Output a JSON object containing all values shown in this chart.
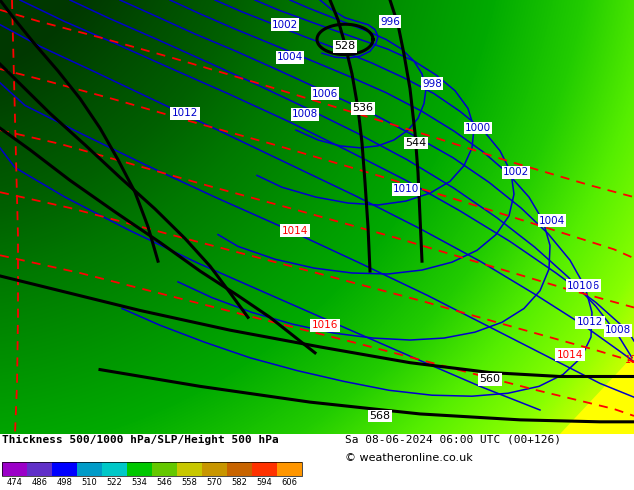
{
  "title_left": "Thickness 500/1000 hPa/SLP/Height 500 hPa",
  "title_right": "Sa 08-06-2024 06:00 UTC (00+126)",
  "copyright": "© weatheronline.co.uk",
  "colorbar_values": [
    474,
    486,
    498,
    510,
    522,
    534,
    546,
    558,
    570,
    582,
    594,
    606
  ],
  "colorbar_colors": [
    "#9b00c8",
    "#6030c8",
    "#0000ff",
    "#009bc8",
    "#00c8c8",
    "#00c800",
    "#64c800",
    "#c8c800",
    "#c89600",
    "#c86400",
    "#ff3200",
    "#ff9600"
  ],
  "fig_width": 6.34,
  "fig_height": 4.9,
  "background_regions": [
    {
      "color": "#004400",
      "band": [
        0,
        0.08
      ]
    },
    {
      "color": "#005500",
      "band": [
        0.08,
        0.18
      ]
    },
    {
      "color": "#006600",
      "band": [
        0.18,
        0.3
      ]
    },
    {
      "color": "#008800",
      "band": [
        0.3,
        0.45
      ]
    },
    {
      "color": "#009900",
      "band": [
        0.45,
        0.6
      ]
    },
    {
      "color": "#22bb00",
      "band": [
        0.6,
        0.75
      ]
    },
    {
      "color": "#44dd00",
      "band": [
        0.75,
        0.88
      ]
    },
    {
      "color": "#66ff00",
      "band": [
        0.88,
        1.0
      ]
    }
  ]
}
